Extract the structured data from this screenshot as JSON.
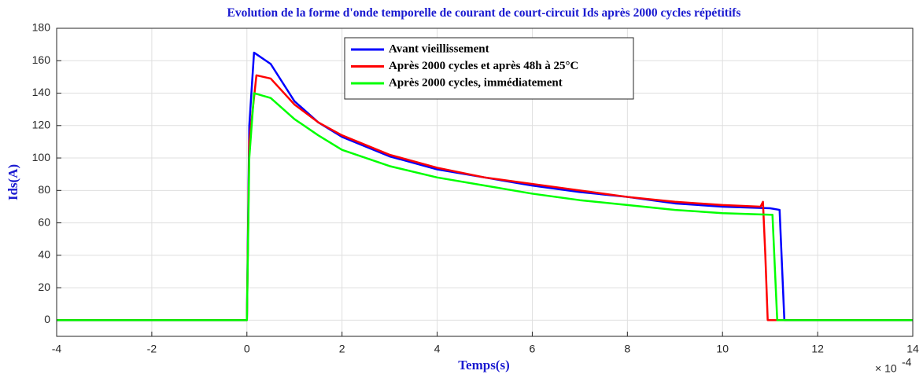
{
  "chart_data": {
    "type": "line",
    "title": "Evolution de la forme d'onde temporelle de courant de court-circuit Ids après 2000 cycles répétitifs",
    "x_label": "Temps(s)",
    "y_label": "Ids(A)",
    "x_multiplier": {
      "base": "× 10",
      "exponent": "-4"
    },
    "xlim": [
      -4,
      14
    ],
    "ylim": [
      -10,
      180
    ],
    "xticks": [
      -4,
      -2,
      0,
      2,
      4,
      6,
      8,
      10,
      12,
      14
    ],
    "yticks": [
      0,
      20,
      40,
      60,
      80,
      100,
      120,
      140,
      160,
      180
    ],
    "grid": true,
    "legend": "north",
    "series": [
      {
        "name": "Avant vieillissement",
        "color": "#0000ff",
        "x": [
          -4,
          0,
          0.05,
          0.15,
          0.5,
          1,
          1.5,
          2,
          3,
          4,
          5,
          6,
          7,
          8,
          9,
          10,
          11,
          11.2,
          11.3,
          14
        ],
        "values": [
          0,
          0,
          120,
          165,
          158,
          135,
          122,
          113,
          101,
          93,
          88,
          83,
          79,
          76,
          72,
          70,
          69,
          68,
          0,
          0
        ]
      },
      {
        "name": "Après 2000 cycles et après 48h à 25°C",
        "color": "#ff0000",
        "x": [
          -4,
          0,
          0.05,
          0.2,
          0.5,
          1,
          1.5,
          2,
          3,
          4,
          5,
          6,
          7,
          8,
          9,
          10,
          10.8,
          10.85,
          10.9,
          10.95,
          14
        ],
        "values": [
          0,
          0,
          110,
          151,
          149,
          133,
          122,
          114,
          102,
          94,
          88,
          84,
          80,
          76,
          73,
          71,
          70,
          73,
          40,
          0,
          0
        ]
      },
      {
        "name": "Après 2000 cycles, immédiatement",
        "color": "#00ff00",
        "x": [
          -4,
          0,
          0.05,
          0.15,
          0.5,
          1,
          1.5,
          2,
          3,
          4,
          5,
          6,
          7,
          8,
          9,
          10,
          11,
          11.05,
          11.15,
          14
        ],
        "values": [
          0,
          0,
          100,
          140,
          137,
          124,
          114,
          105,
          95,
          88,
          83,
          78,
          74,
          71,
          68,
          66,
          65,
          65,
          0,
          0
        ]
      }
    ]
  }
}
